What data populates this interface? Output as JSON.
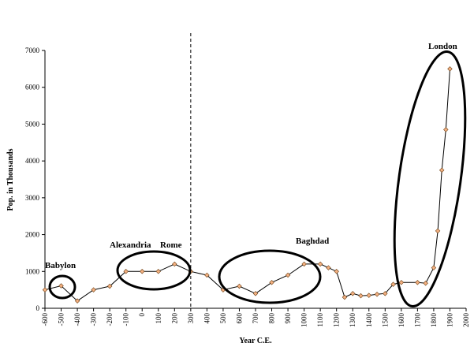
{
  "chart_data": {
    "type": "line",
    "xlabel": "Year C.E.",
    "ylabel": "Pop. in Thousands",
    "xlim": [
      -600,
      2000
    ],
    "ylim": [
      0,
      7000
    ],
    "x_ticks": [
      "-600",
      "-500",
      "-400",
      "-300",
      "-200",
      "-100",
      "0",
      "100",
      "200",
      "300",
      "400",
      "500",
      "600",
      "700",
      "800",
      "900",
      "1000",
      "1100",
      "1200",
      "1300",
      "1400",
      "1500",
      "1600",
      "1700",
      "1800",
      "1900",
      "2000"
    ],
    "y_ticks": [
      "0",
      "1000",
      "2000",
      "3000",
      "4000",
      "5000",
      "6000",
      "7000"
    ],
    "grid": false,
    "divider_x": 300,
    "marker_color": "#f4b183",
    "series": [
      {
        "points": [
          [
            -600,
            500
          ],
          [
            -500,
            610
          ],
          [
            -400,
            200
          ],
          [
            -300,
            500
          ],
          [
            -200,
            600
          ],
          [
            -100,
            1000
          ],
          [
            0,
            1000
          ],
          [
            100,
            1000
          ],
          [
            200,
            1200
          ],
          [
            300,
            1000
          ],
          [
            400,
            900
          ],
          [
            500,
            500
          ],
          [
            600,
            600
          ],
          [
            700,
            400
          ],
          [
            800,
            700
          ],
          [
            900,
            900
          ],
          [
            1000,
            1200
          ],
          [
            1100,
            1200
          ],
          [
            1150,
            1100
          ],
          [
            1200,
            1000
          ],
          [
            1250,
            300
          ],
          [
            1300,
            400
          ],
          [
            1350,
            340
          ],
          [
            1400,
            350
          ],
          [
            1450,
            380
          ],
          [
            1500,
            400
          ],
          [
            1550,
            650
          ],
          [
            1600,
            700
          ],
          [
            1700,
            700
          ],
          [
            1750,
            680
          ],
          [
            1800,
            1100
          ],
          [
            1825,
            2100
          ],
          [
            1850,
            3750
          ],
          [
            1875,
            4850
          ],
          [
            1900,
            6500
          ]
        ]
      }
    ],
    "annotations": [
      {
        "label": "Babylon",
        "x": -500,
        "y": 600
      },
      {
        "label": "Alexandria",
        "x": 0,
        "y": 1000
      },
      {
        "label": "Rome",
        "x": 200,
        "y": 1150
      },
      {
        "label": "Baghdad",
        "x": 800,
        "y": 800
      },
      {
        "label": "London",
        "x": 1850,
        "y": 3800
      }
    ]
  }
}
